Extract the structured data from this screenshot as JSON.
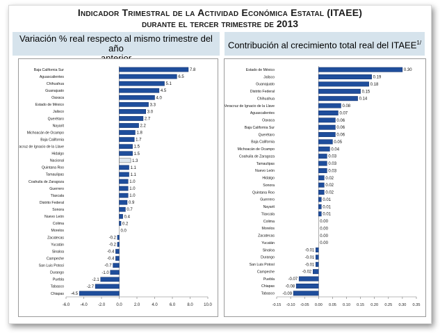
{
  "header": {
    "title_line1": "Indicador Trimestral de la Actividad Económica Estatal (ITAEE)",
    "title_line2": "durante el tercer trimestre de 2013"
  },
  "left_subtitle": {
    "line1": "Variación % real respecto al mismo trimestre del año",
    "line2": "anterior"
  },
  "right_subtitle": {
    "text": "Contribución al crecimiento total real del ITAEE",
    "superscript": "1/"
  },
  "colors": {
    "bar": "#1f4e9c",
    "bar_dark": "#0c2a66",
    "highlight": "#dfe7ee"
  },
  "chart_data": [
    {
      "type": "bar",
      "orientation": "horizontal",
      "title": "Variación % real respecto al mismo trimestre del año anterior",
      "categories": [
        "Baja California Sur",
        "Aguascalientes",
        "Chihuahua",
        "Guanajuato",
        "Oaxaca",
        "Estado de México",
        "Jalisco",
        "Querétaro",
        "Nayarit",
        "Michoacán de Ocampo",
        "Baja California",
        "Veracruz de Ignacio de la Llave",
        "Hidalgo",
        "Nacional",
        "Quintana Roo",
        "Tamaulipas",
        "Coahuila de Zaragoza",
        "Guerrero",
        "Tlaxcala",
        "Distrito Federal",
        "Sonora",
        "Nuevo León",
        "Colima",
        "Morelos",
        "Zacatecas",
        "Yucatán",
        "Sinaloa",
        "Campeche",
        "San Luis Potosí",
        "Durango",
        "Puebla",
        "Tabasco",
        "Chiapas"
      ],
      "values": [
        7.8,
        6.5,
        5.1,
        4.5,
        4.0,
        3.3,
        3.0,
        2.7,
        2.2,
        1.8,
        1.7,
        1.5,
        1.5,
        1.3,
        1.1,
        1.1,
        1.0,
        1.0,
        1.0,
        0.9,
        0.7,
        0.4,
        0.2,
        0.0,
        -0.2,
        -0.2,
        -0.4,
        -0.4,
        -0.7,
        -1.0,
        -2.1,
        -2.7,
        -4.5
      ],
      "labels": [
        "7.8",
        "6.5",
        "5.1",
        "4.5",
        "4.0",
        "3.3",
        "3.0",
        "2.7",
        "2.2",
        "1.8",
        "1.7",
        "1.5",
        "1.5",
        "1.3",
        "1.1",
        "1.1",
        "1.0",
        "1.0",
        "1.0",
        "0.9",
        "0.7",
        "0.4",
        "0.2",
        "0.0",
        "-0.2",
        "-0.2",
        "-0.4",
        "-0.4",
        "-0.7",
        "-1.0",
        "-2.1",
        "-2.7",
        "-4.5"
      ],
      "highlight": "Nacional",
      "xlim": [
        -6.0,
        10.0
      ],
      "xticks": [
        "-6.0",
        "-4.0",
        "-2.0",
        "0.0",
        "2.0",
        "4.0",
        "6.0",
        "8.0",
        "10.0"
      ],
      "xtick_values": [
        -6,
        -4,
        -2,
        0,
        2,
        4,
        6,
        8,
        10
      ]
    },
    {
      "type": "bar",
      "orientation": "horizontal",
      "title": "Contribución al crecimiento total real del ITAEE",
      "categories": [
        "Estado de México",
        "Jalisco",
        "Guanajuato",
        "Distrito Federal",
        "Chihuahua",
        "Veracruz de Ignacio de la Llave",
        "Aguascalientes",
        "Oaxaca",
        "Baja California Sur",
        "Querétaro",
        "Baja California",
        "Michoacán de Ocampo",
        "Coahuila de Zaragoza",
        "Tamaulipas",
        "Nuevo León",
        "Hidalgo",
        "Sonora",
        "Quintana Roo",
        "Guerrero",
        "Nayarit",
        "Tlaxcala",
        "Colima",
        "Morelos",
        "Zacatecas",
        "Yucatán",
        "Sinaloa",
        "Durango",
        "San Luis Potosí",
        "Campeche",
        "Puebla",
        "Chiapas",
        "Tabasco"
      ],
      "values": [
        0.3,
        0.19,
        0.18,
        0.15,
        0.14,
        0.08,
        0.07,
        0.06,
        0.06,
        0.06,
        0.05,
        0.04,
        0.03,
        0.03,
        0.03,
        0.02,
        0.02,
        0.02,
        0.01,
        0.01,
        0.01,
        0.0,
        0.0,
        0.0,
        0.0,
        -0.01,
        -0.01,
        -0.01,
        -0.02,
        -0.07,
        -0.08,
        -0.09
      ],
      "labels": [
        "0.30",
        "0.19",
        "0.18",
        "0.15",
        "0.14",
        "0.08",
        "0.07",
        "0.06",
        "0.06",
        "0.06",
        "0.05",
        "0.04",
        "0.03",
        "0.03",
        "0.03",
        "0.02",
        "0.02",
        "0.02",
        "0.01",
        "0.01",
        "0.01",
        "0.00",
        "0.00",
        "0.00",
        "0.00",
        "-0.01",
        "-0.01",
        "-0.01",
        "-0.02",
        "-0.07",
        "-0.08",
        "-0.09"
      ],
      "xlim": [
        -0.15,
        0.35
      ],
      "xticks": [
        "-0.15",
        "-0.10",
        "-0.05",
        "0.00",
        "0.05",
        "0.10",
        "0.15",
        "0.20",
        "0.25",
        "0.30",
        "0.35"
      ],
      "xtick_values": [
        -0.15,
        -0.1,
        -0.05,
        0.0,
        0.05,
        0.1,
        0.15,
        0.2,
        0.25,
        0.3,
        0.35
      ]
    }
  ]
}
